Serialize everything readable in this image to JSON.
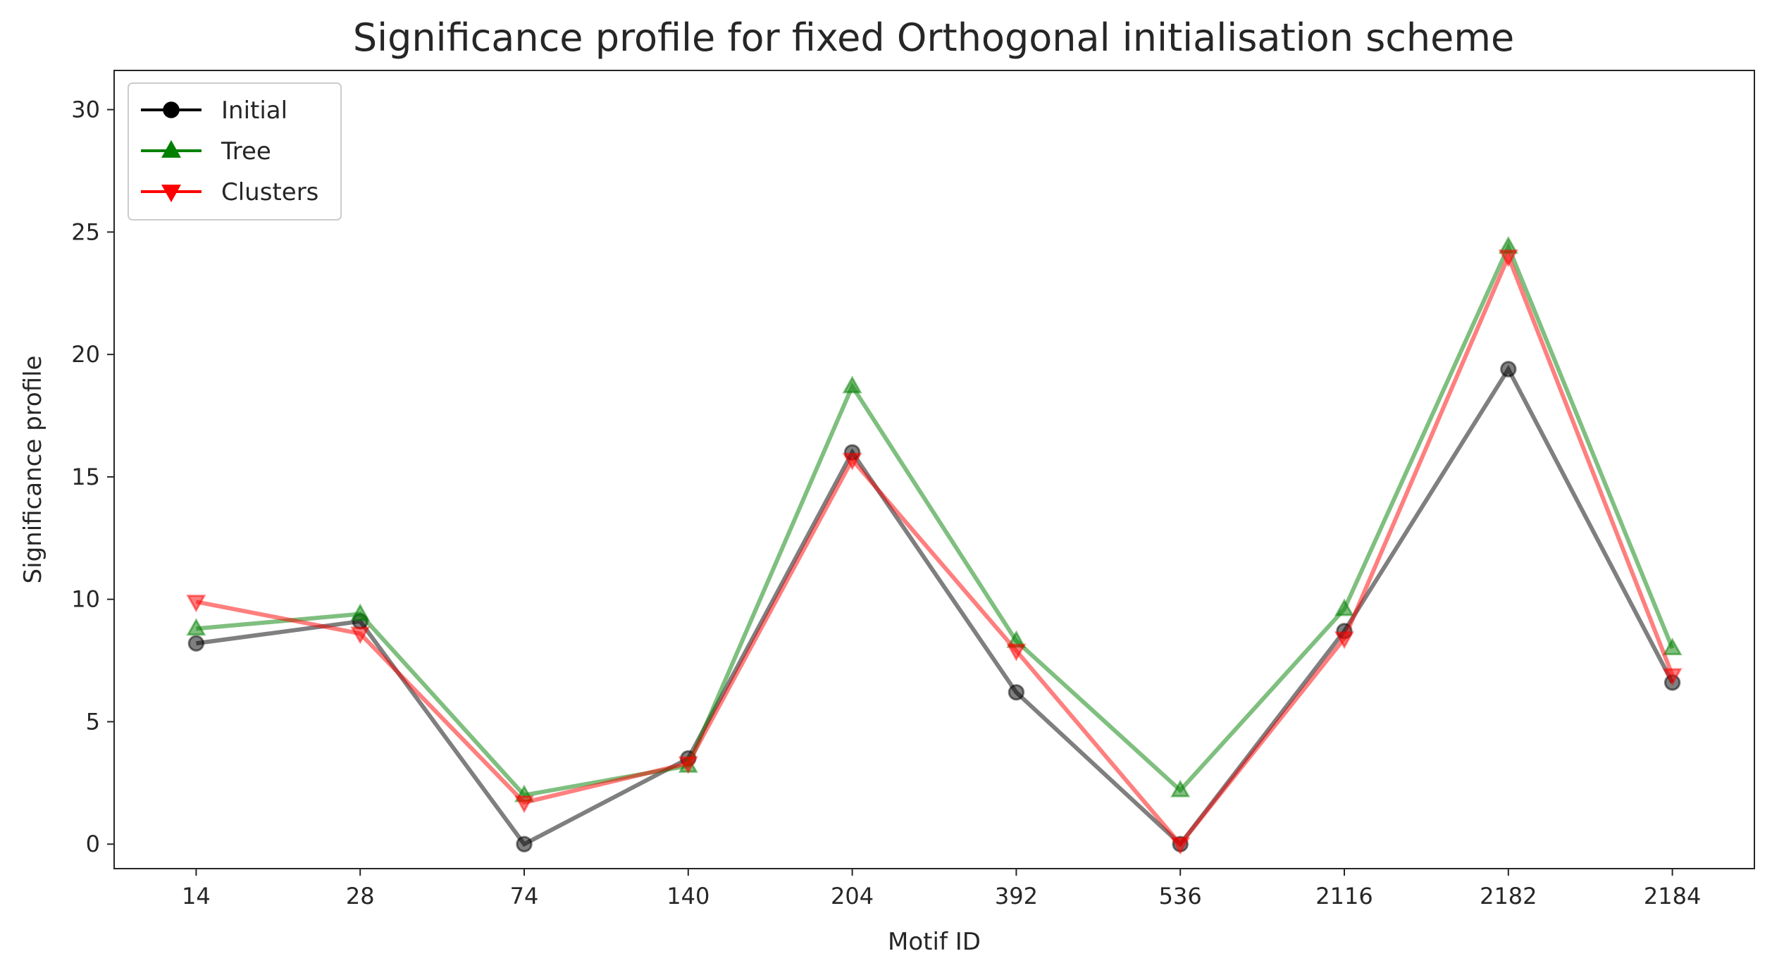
{
  "chart_data": {
    "type": "line",
    "title": "Significance profile for fixed Orthogonal initialisation scheme",
    "xlabel": "Motif ID",
    "ylabel": "Significance profile",
    "categories": [
      "14",
      "28",
      "74",
      "140",
      "204",
      "392",
      "536",
      "2116",
      "2182",
      "2184"
    ],
    "ylim": [
      -1,
      31.6
    ],
    "yticks": [
      0,
      5,
      10,
      15,
      20,
      25,
      30
    ],
    "grid": false,
    "legend_position": "top-left",
    "series": [
      {
        "name": "Initial",
        "color": "#000000",
        "marker": "circle",
        "values": [
          8.2,
          9.1,
          0.0,
          3.5,
          16.0,
          6.2,
          0.0,
          8.7,
          19.4,
          6.6
        ]
      },
      {
        "name": "Tree",
        "color": "#008000",
        "marker": "triangle-up",
        "values": [
          8.8,
          9.4,
          2.0,
          3.2,
          18.7,
          8.3,
          2.2,
          9.6,
          24.4,
          8.0
        ]
      },
      {
        "name": "Clusters",
        "color": "#ff0000",
        "marker": "triangle-down",
        "values": [
          9.9,
          8.6,
          1.7,
          3.3,
          15.7,
          7.9,
          0.0,
          8.4,
          24.0,
          6.9
        ]
      }
    ]
  }
}
